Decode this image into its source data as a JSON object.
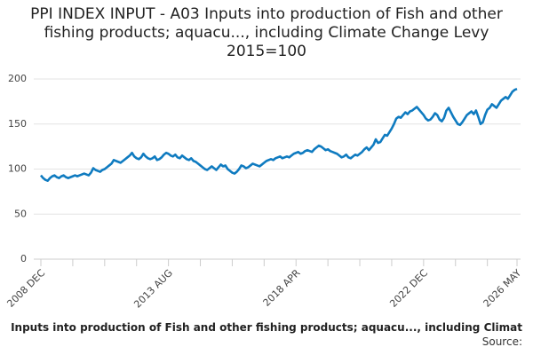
{
  "chart_data": {
    "type": "line",
    "title": "PPI INDEX INPUT - A03 Inputs into production of Fish and other fishing products; aquacu..., including Climate Change Levy 2015=100",
    "source": "Source:",
    "categories": [
      "2008 DEC",
      null,
      null,
      null,
      null,
      null,
      null,
      null,
      null,
      null,
      null,
      null,
      null,
      null,
      null,
      null,
      null,
      null,
      null,
      null,
      null,
      null,
      null,
      null,
      null,
      null,
      null,
      null,
      null,
      null,
      null,
      null,
      null,
      null,
      null,
      null,
      null,
      null,
      null,
      null,
      null,
      null,
      null,
      null,
      null,
      null,
      null,
      null,
      null,
      null,
      null,
      null,
      null,
      null,
      null,
      null,
      "2013 AUG",
      null,
      null,
      null,
      null,
      null,
      null,
      null,
      null,
      null,
      null,
      null,
      null,
      null,
      null,
      null,
      null,
      null,
      null,
      null,
      null,
      null,
      null,
      null,
      null,
      null,
      null,
      null,
      null,
      null,
      null,
      null,
      null,
      null,
      null,
      null,
      null,
      null,
      null,
      null,
      null,
      null,
      null,
      null,
      null,
      null,
      null,
      null,
      null,
      null,
      null,
      null,
      null,
      null,
      null,
      null,
      "2018 APR",
      null,
      null,
      null,
      null,
      null,
      null,
      null,
      null,
      null,
      null,
      null,
      null,
      null,
      null,
      null,
      null,
      null,
      null,
      null,
      null,
      null,
      null,
      null,
      null,
      null,
      null,
      null,
      null,
      null,
      null,
      null,
      null,
      null,
      null,
      null,
      null,
      null,
      null,
      null,
      null,
      null,
      null,
      null,
      null,
      null,
      null,
      null,
      null,
      null,
      null,
      null,
      null,
      null,
      null,
      null,
      "2022 DEC",
      null,
      null,
      null,
      null,
      null,
      null,
      null,
      null,
      null,
      null,
      null,
      null,
      null,
      null,
      null,
      null,
      null,
      null,
      null,
      null,
      null,
      null,
      null,
      null,
      null,
      null,
      null,
      null,
      null,
      null,
      null,
      null,
      null,
      null,
      null,
      null,
      null,
      null,
      null,
      null,
      "2026 MAY"
    ],
    "series": [
      {
        "name": "Inputs into production of Fish and other fishing products; aquacu..., including Climat",
        "color": "#0f7bc0",
        "values": [
          93,
          90,
          88,
          87,
          90,
          92,
          93,
          91,
          90,
          92,
          93,
          91,
          90,
          91,
          92,
          93,
          92,
          93,
          94,
          95,
          94,
          93,
          96,
          101,
          99,
          98,
          97,
          99,
          100,
          102,
          104,
          106,
          110,
          109,
          108,
          107,
          109,
          111,
          113,
          115,
          118,
          114,
          112,
          111,
          113,
          117,
          114,
          112,
          111,
          112,
          114,
          110,
          111,
          113,
          116,
          118,
          117,
          115,
          114,
          116,
          113,
          112,
          115,
          113,
          111,
          110,
          112,
          109,
          108,
          106,
          104,
          102,
          100,
          99,
          101,
          103,
          101,
          99,
          102,
          105,
          103,
          104,
          100,
          98,
          96,
          95,
          97,
          100,
          104,
          103,
          101,
          102,
          104,
          106,
          105,
          104,
          103,
          105,
          107,
          109,
          110,
          111,
          110,
          112,
          113,
          114,
          112,
          113,
          114,
          113,
          115,
          117,
          118,
          119,
          117,
          118,
          120,
          121,
          120,
          119,
          122,
          124,
          126,
          125,
          123,
          121,
          122,
          120,
          119,
          118,
          117,
          115,
          113,
          114,
          116,
          113,
          112,
          114,
          116,
          115,
          117,
          119,
          122,
          124,
          121,
          124,
          127,
          133,
          129,
          130,
          134,
          138,
          137,
          141,
          145,
          150,
          156,
          158,
          157,
          160,
          163,
          161,
          164,
          165,
          167,
          169,
          166,
          163,
          160,
          156,
          154,
          155,
          158,
          162,
          160,
          155,
          153,
          157,
          165,
          168,
          163,
          158,
          154,
          150,
          149,
          152,
          156,
          160,
          162,
          164,
          161,
          165,
          158,
          150,
          152,
          160,
          166,
          168,
          172,
          170,
          168,
          172,
          176,
          178,
          180,
          178,
          182,
          186,
          188,
          189
        ]
      }
    ],
    "ylim": [
      0,
      200
    ],
    "yticks": [
      0,
      50,
      100,
      150,
      200
    ],
    "grid": true
  }
}
